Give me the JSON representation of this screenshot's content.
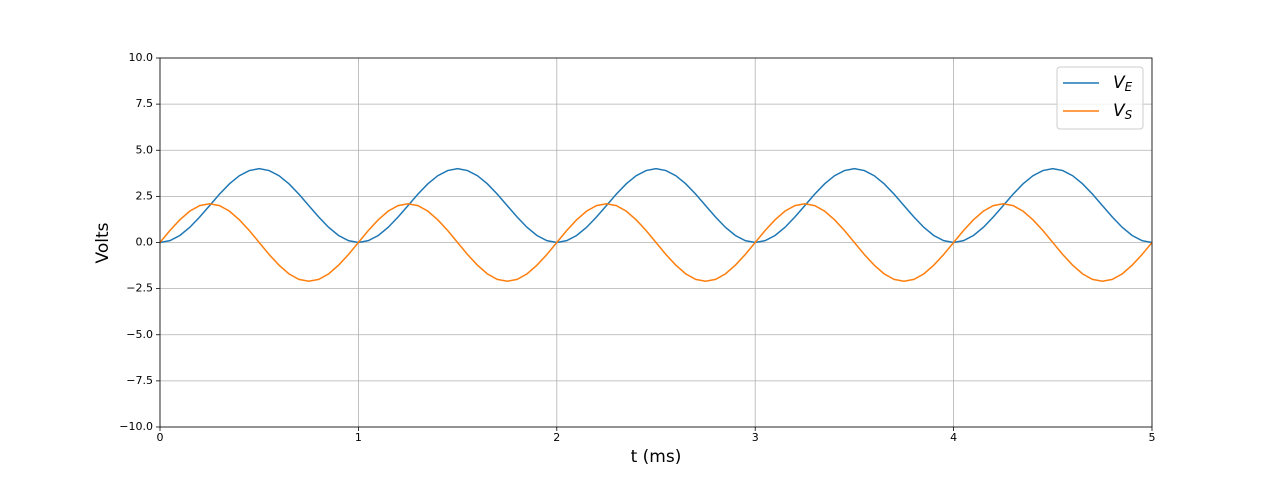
{
  "chart_data": {
    "type": "line",
    "xlabel": "t (ms)",
    "ylabel": "Volts",
    "x": [
      0,
      0.05,
      0.1,
      0.15,
      0.2,
      0.25,
      0.3,
      0.35,
      0.4,
      0.45,
      0.5,
      0.55,
      0.6,
      0.65,
      0.7,
      0.75,
      0.8,
      0.85,
      0.9,
      0.95,
      1,
      1.05,
      1.1,
      1.15,
      1.2,
      1.25,
      1.3,
      1.35,
      1.4,
      1.45,
      1.5,
      1.55,
      1.6,
      1.65,
      1.7,
      1.75,
      1.8,
      1.85,
      1.9,
      1.95,
      2,
      2.05,
      2.1,
      2.15,
      2.2,
      2.25,
      2.3,
      2.35,
      2.4,
      2.45,
      2.5,
      2.55,
      2.6,
      2.65,
      2.7,
      2.75,
      2.8,
      2.85,
      2.9,
      2.95,
      3,
      3.05,
      3.1,
      3.15,
      3.2,
      3.25,
      3.3,
      3.35,
      3.4,
      3.45,
      3.5,
      3.55,
      3.6,
      3.65,
      3.7,
      3.75,
      3.8,
      3.85,
      3.9,
      3.95,
      4,
      4.05,
      4.1,
      4.15,
      4.2,
      4.25,
      4.3,
      4.35,
      4.4,
      4.45,
      4.5,
      4.55,
      4.6,
      4.65,
      4.7,
      4.75,
      4.8,
      4.85,
      4.9,
      4.95,
      5
    ],
    "series": [
      {
        "name": "V",
        "subscript": "E",
        "color": "#1f77b4",
        "values": [
          0,
          0.1,
          0.38,
          0.82,
          1.38,
          2,
          2.62,
          3.18,
          3.62,
          3.9,
          4,
          3.9,
          3.62,
          3.18,
          2.62,
          2,
          1.38,
          0.82,
          0.38,
          0.1,
          0,
          0.1,
          0.38,
          0.82,
          1.38,
          2,
          2.62,
          3.18,
          3.62,
          3.9,
          4,
          3.9,
          3.62,
          3.18,
          2.62,
          2,
          1.38,
          0.82,
          0.38,
          0.1,
          0,
          0.1,
          0.38,
          0.82,
          1.38,
          2,
          2.62,
          3.18,
          3.62,
          3.9,
          4,
          3.9,
          3.62,
          3.18,
          2.62,
          2,
          1.38,
          0.82,
          0.38,
          0.1,
          0,
          0.1,
          0.38,
          0.82,
          1.38,
          2,
          2.62,
          3.18,
          3.62,
          3.9,
          4,
          3.9,
          3.62,
          3.18,
          2.62,
          2,
          1.38,
          0.82,
          0.38,
          0.1,
          0,
          0.1,
          0.38,
          0.82,
          1.38,
          2,
          2.62,
          3.18,
          3.62,
          3.9,
          4,
          3.9,
          3.62,
          3.18,
          2.62,
          2,
          1.38,
          0.82,
          0.38,
          0.1,
          0
        ]
      },
      {
        "name": "V",
        "subscript": "S",
        "color": "#ff7f0e",
        "values": [
          0,
          0.65,
          1.23,
          1.7,
          2,
          2.1,
          2,
          1.7,
          1.23,
          0.65,
          0,
          -0.65,
          -1.23,
          -1.7,
          -2,
          -2.1,
          -2,
          -1.7,
          -1.23,
          -0.65,
          0,
          0.65,
          1.23,
          1.7,
          2,
          2.1,
          2,
          1.7,
          1.23,
          0.65,
          0,
          -0.65,
          -1.23,
          -1.7,
          -2,
          -2.1,
          -2,
          -1.7,
          -1.23,
          -0.65,
          0,
          0.65,
          1.23,
          1.7,
          2,
          2.1,
          2,
          1.7,
          1.23,
          0.65,
          0,
          -0.65,
          -1.23,
          -1.7,
          -2,
          -2.1,
          -2,
          -1.7,
          -1.23,
          -0.65,
          0,
          0.65,
          1.23,
          1.7,
          2,
          2.1,
          2,
          1.7,
          1.23,
          0.65,
          0,
          -0.65,
          -1.23,
          -1.7,
          -2,
          -2.1,
          -2,
          -1.7,
          -1.23,
          -0.65,
          0,
          0.65,
          1.23,
          1.7,
          2,
          2.1,
          2,
          1.7,
          1.23,
          0.65,
          0,
          -0.65,
          -1.23,
          -1.7,
          -2,
          -2.1,
          -2,
          -1.7,
          -1.23,
          -0.65,
          0
        ]
      }
    ],
    "xlim": [
      0,
      5
    ],
    "xticks": [
      0,
      1,
      2,
      3,
      4,
      5
    ],
    "ylim": [
      -10,
      10
    ],
    "yticks": [
      {
        "value": -10,
        "label": "−10.0"
      },
      {
        "value": -7.5,
        "label": "−7.5"
      },
      {
        "value": -5,
        "label": "−5.0"
      },
      {
        "value": -2.5,
        "label": "−2.5"
      },
      {
        "value": 0,
        "label": "0.0"
      },
      {
        "value": 2.5,
        "label": "2.5"
      },
      {
        "value": 5,
        "label": "5.0"
      },
      {
        "value": 7.5,
        "label": "7.5"
      },
      {
        "value": 10,
        "label": "10.0"
      }
    ],
    "grid": true,
    "legend": "upper-right"
  }
}
